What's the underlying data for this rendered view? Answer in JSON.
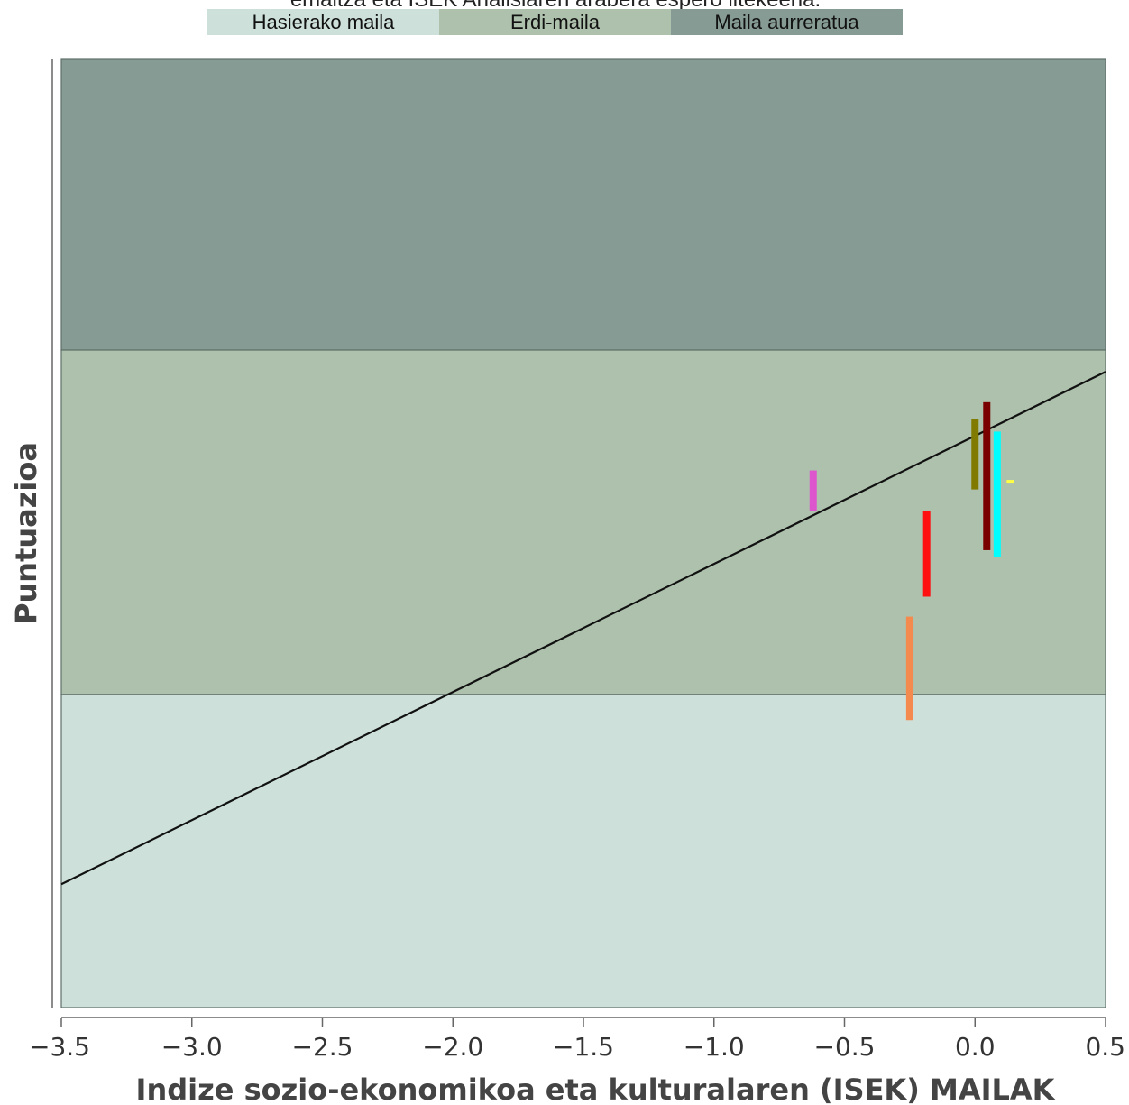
{
  "chart_data": {
    "type": "scatter",
    "title": "emaitza eta ISEK Analisiaren arabera espero litekeena.",
    "xlabel": "Indize sozio-ekonomikoa eta kulturalaren (ISEK) MAILAK",
    "ylabel": "Puntuazioa",
    "xlim": [
      -3.5,
      0.5
    ],
    "x_ticks": [
      "−3.5",
      "−3.0",
      "−2.5",
      "−2.0",
      "−1.5",
      "−1.0",
      "−0.5",
      "0.0",
      "0.5"
    ],
    "ylim": [
      0,
      100
    ],
    "bands": [
      {
        "label": "Hasierako maila",
        "from": 0,
        "to": 33,
        "color": "#cde0da"
      },
      {
        "label": "Erdi-maila",
        "from": 33,
        "to": 69.3,
        "color": "#adc1ac"
      },
      {
        "label": "Maila aurreratua",
        "from": 69.3,
        "to": 100,
        "color": "#879b95"
      }
    ],
    "trend_line": {
      "x": [
        -3.5,
        0.5
      ],
      "y": [
        13,
        67
      ],
      "color": "#111111"
    },
    "ranges": [
      {
        "x": -0.62,
        "y_low": 52.3,
        "y_high": 56.6,
        "color": "#dd55cc"
      },
      {
        "x": -0.25,
        "y_low": 30.3,
        "y_high": 41.2,
        "color": "#f58a4e"
      },
      {
        "x": -0.185,
        "y_low": 43.3,
        "y_high": 52.3,
        "color": "#ff1111"
      },
      {
        "x": 0.0,
        "y_low": 54.6,
        "y_high": 62.0,
        "color": "#807a00"
      },
      {
        "x": 0.045,
        "y_low": 48.2,
        "y_high": 63.8,
        "color": "#7a0000"
      },
      {
        "x": 0.085,
        "y_low": 47.5,
        "y_high": 60.7,
        "color": "#00ffff"
      },
      {
        "x": 0.135,
        "y_low": 55.3,
        "y_high": 55.6,
        "color": "#ffff44"
      }
    ]
  }
}
